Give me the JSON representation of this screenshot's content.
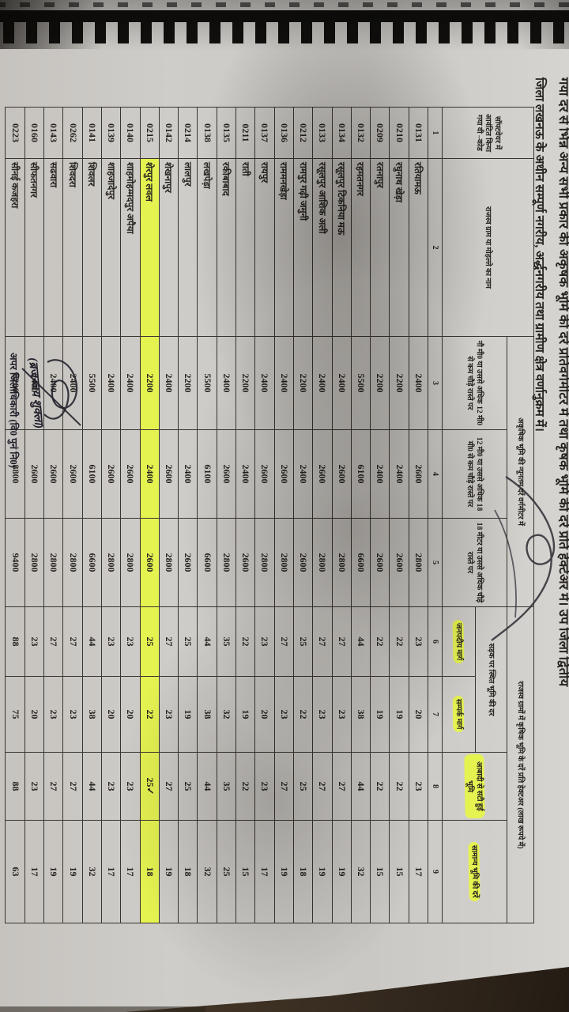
{
  "heading": {
    "line1": "गया दर से भिन्न अन्य सभी प्रकार की अकृषक भूमि की दरें प्रतिवर्गमीटर में तथा कृषक भूमि की दरें प्रति हेक्टेअर में। उप जिला द्वितीय",
    "line2": "जिला लखनऊ के अधीन सम्पूर्ण नगरीय, अर्द्धनगरीय तथा ग्रामीण क्षेत्र वर्णानुक्रम में।"
  },
  "table": {
    "headers": {
      "col1": "सॉफ्टवेयर में आवंटित किया गया वी –कोड",
      "col2": "राजस्व ग्राम या मोहल्ले का नाम",
      "group_nonagri": "अकृषिक भूमि की न्यूनतम दरें वर्गमीटर में",
      "col3": "नौ मी0 या उससे अधिक 12 मी0 से कम चौड़े रास्ते पर",
      "col4": "12 मी0 या उससे अधिक 18 मी0 से कम चौड़े रास्ते पर",
      "col5": "18 मीटर या उससे अधिक चौड़े रास्ते पर",
      "group_agri": "राजस्व ग्रामों में कृषिक भूमि के दरें प्रति हेक्टअर (लाख रूपये में)",
      "subgroup_road": "सड़क पर स्थित भूमि की दर",
      "col6": "जनपदीय मार्ग",
      "col7": "सम्पर्क मार्ग",
      "col8": "आबादी से सटी हुई भूमि",
      "col9": "सामान्य भूमि की दरें"
    },
    "serials": [
      "1",
      "2",
      "3",
      "4",
      "5",
      "6",
      "7",
      "8",
      "9"
    ],
    "rows": [
      {
        "code": "0131",
        "name": "रतियामऊ",
        "values": [
          "2400",
          "2600",
          "2800",
          "23",
          "20",
          "23",
          "17"
        ],
        "highlight": false
      },
      {
        "code": "0210",
        "name": "रघुनाथ खेड़ा",
        "values": [
          "2200",
          "2400",
          "2600",
          "22",
          "19",
          "22",
          "15"
        ],
        "highlight": false
      },
      {
        "code": "0209",
        "name": "रतनापुर",
        "values": [
          "2200",
          "2400",
          "2600",
          "22",
          "19",
          "22",
          "15"
        ],
        "highlight": false
      },
      {
        "code": "0132",
        "name": "रहमतनगर",
        "values": [
          "5500",
          "6100",
          "6600",
          "44",
          "38",
          "44",
          "32"
        ],
        "highlight": false
      },
      {
        "code": "0134",
        "name": "रसूलपुर टिकनिया मऊ",
        "values": [
          "2400",
          "2600",
          "2800",
          "27",
          "23",
          "27",
          "19"
        ],
        "highlight": false
      },
      {
        "code": "0133",
        "name": "रसूलपुर आशिक अली",
        "values": [
          "2400",
          "2600",
          "2800",
          "27",
          "23",
          "27",
          "19"
        ],
        "highlight": false
      },
      {
        "code": "0212",
        "name": "रामपुर गढ़ी जमुनी",
        "values": [
          "2200",
          "2400",
          "2600",
          "25",
          "22",
          "25",
          "18"
        ],
        "highlight": false
      },
      {
        "code": "0136",
        "name": "राममनखेड़ा",
        "values": [
          "2400",
          "2600",
          "2800",
          "27",
          "23",
          "27",
          "19"
        ],
        "highlight": false
      },
      {
        "code": "0137",
        "name": "रायपुर",
        "values": [
          "2400",
          "2600",
          "2800",
          "23",
          "20",
          "23",
          "17"
        ],
        "highlight": false
      },
      {
        "code": "0211",
        "name": "राती",
        "values": [
          "2200",
          "2400",
          "2600",
          "22",
          "19",
          "22",
          "15"
        ],
        "highlight": false
      },
      {
        "code": "0135",
        "name": "रकीबाबाद",
        "values": [
          "2400",
          "2600",
          "2800",
          "35",
          "32",
          "35",
          "25"
        ],
        "highlight": false
      },
      {
        "code": "0138",
        "name": "लखपेड़ा",
        "values": [
          "5500",
          "6100",
          "6600",
          "44",
          "38",
          "44",
          "32"
        ],
        "highlight": false
      },
      {
        "code": "0214",
        "name": "लालपुर",
        "values": [
          "2200",
          "2400",
          "2600",
          "25",
          "19",
          "25",
          "18"
        ],
        "highlight": false
      },
      {
        "code": "0142",
        "name": "शेखनापुर",
        "values": [
          "2400",
          "2600",
          "2800",
          "27",
          "23",
          "27",
          "19"
        ],
        "highlight": false
      },
      {
        "code": "0215",
        "name": "शेरपुर लवल",
        "values": [
          "2200",
          "2400",
          "2600",
          "25",
          "22",
          "25✓",
          "18"
        ],
        "highlight": true
      },
      {
        "code": "0140",
        "name": "शाहमोहम्मदपुर अपैया",
        "values": [
          "2400",
          "2600",
          "2800",
          "23",
          "20",
          "23",
          "17"
        ],
        "highlight": false
      },
      {
        "code": "0139",
        "name": "शाहजादेपुर",
        "values": [
          "2400",
          "2600",
          "2800",
          "23",
          "20",
          "23",
          "17"
        ],
        "highlight": false
      },
      {
        "code": "0141",
        "name": "शिवलर",
        "values": [
          "5500",
          "6100",
          "6600",
          "44",
          "38",
          "44",
          "32"
        ],
        "highlight": false
      },
      {
        "code": "0262",
        "name": "शिवदरा",
        "values": [
          "2400",
          "2600",
          "2800",
          "27",
          "23",
          "27",
          "19"
        ],
        "highlight": false
      },
      {
        "code": "0143",
        "name": "सढवारा",
        "values": [
          "2400",
          "2600",
          "2800",
          "27",
          "23",
          "27",
          "19"
        ],
        "highlight": false
      },
      {
        "code": "0160",
        "name": "सीफतनगर",
        "values": [
          "2400",
          "2600",
          "2800",
          "23",
          "20",
          "23",
          "17"
        ],
        "highlight": false
      },
      {
        "code": "0223",
        "name": "सीनई कजहरा",
        "values": [
          "8200",
          "8800",
          "9400",
          "88",
          "75",
          "88",
          "63"
        ],
        "highlight": false
      }
    ]
  },
  "signature": {
    "name": "(ब्रजन्जय शुक्ला)",
    "designation": "अपर जिलाधिकारी (वि0 पुनं नि0)"
  },
  "colors": {
    "highlight": "#e5f351",
    "paper": "#cfcdc9",
    "ink": "#26231f"
  }
}
